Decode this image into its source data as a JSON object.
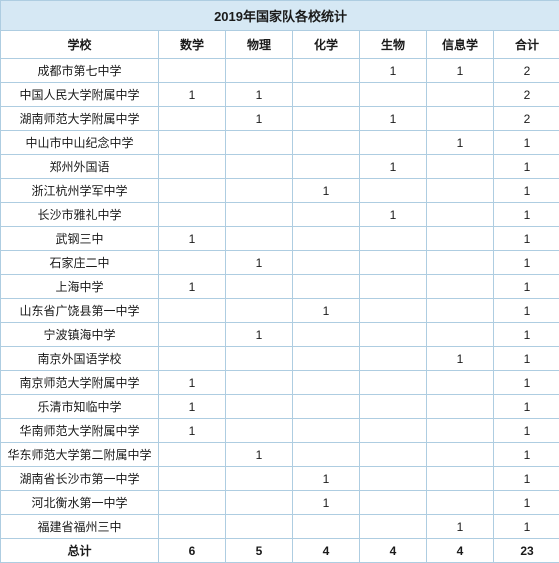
{
  "title": "2019年国家队各校统计",
  "columns": [
    "学校",
    "数学",
    "物理",
    "化学",
    "生物",
    "信息学",
    "合计"
  ],
  "rows": [
    {
      "school": "成都市第七中学",
      "vals": [
        "",
        "",
        "",
        "1",
        "1",
        "2"
      ]
    },
    {
      "school": "中国人民大学附属中学",
      "vals": [
        "1",
        "1",
        "",
        "",
        "",
        "2"
      ]
    },
    {
      "school": "湖南师范大学附属中学",
      "vals": [
        "",
        "1",
        "",
        "1",
        "",
        "2"
      ]
    },
    {
      "school": "中山市中山纪念中学",
      "vals": [
        "",
        "",
        "",
        "",
        "1",
        "1"
      ]
    },
    {
      "school": "郑州外国语",
      "vals": [
        "",
        "",
        "",
        "1",
        "",
        "1"
      ]
    },
    {
      "school": "浙江杭州学军中学",
      "vals": [
        "",
        "",
        "1",
        "",
        "",
        "1"
      ]
    },
    {
      "school": "长沙市雅礼中学",
      "vals": [
        "",
        "",
        "",
        "1",
        "",
        "1"
      ]
    },
    {
      "school": "武钢三中",
      "vals": [
        "1",
        "",
        "",
        "",
        "",
        "1"
      ]
    },
    {
      "school": "石家庄二中",
      "vals": [
        "",
        "1",
        "",
        "",
        "",
        "1"
      ]
    },
    {
      "school": "上海中学",
      "vals": [
        "1",
        "",
        "",
        "",
        "",
        "1"
      ]
    },
    {
      "school": "山东省广饶县第一中学",
      "vals": [
        "",
        "",
        "1",
        "",
        "",
        "1"
      ]
    },
    {
      "school": "宁波镇海中学",
      "vals": [
        "",
        "1",
        "",
        "",
        "",
        "1"
      ]
    },
    {
      "school": "南京外国语学校",
      "vals": [
        "",
        "",
        "",
        "",
        "1",
        "1"
      ]
    },
    {
      "school": "南京师范大学附属中学",
      "vals": [
        "1",
        "",
        "",
        "",
        "",
        "1"
      ]
    },
    {
      "school": "乐清市知临中学",
      "vals": [
        "1",
        "",
        "",
        "",
        "",
        "1"
      ]
    },
    {
      "school": "华南师范大学附属中学",
      "vals": [
        "1",
        "",
        "",
        "",
        "",
        "1"
      ]
    },
    {
      "school": "华东师范大学第二附属中学",
      "vals": [
        "",
        "1",
        "",
        "",
        "",
        "1"
      ]
    },
    {
      "school": "湖南省长沙市第一中学",
      "vals": [
        "",
        "",
        "1",
        "",
        "",
        "1"
      ]
    },
    {
      "school": "河北衡水第一中学",
      "vals": [
        "",
        "",
        "1",
        "",
        "",
        "1"
      ]
    },
    {
      "school": "福建省福州三中",
      "vals": [
        "",
        "",
        "",
        "",
        "1",
        "1"
      ]
    }
  ],
  "total": {
    "label": "总计",
    "vals": [
      "6",
      "5",
      "4",
      "4",
      "4",
      "23"
    ]
  }
}
